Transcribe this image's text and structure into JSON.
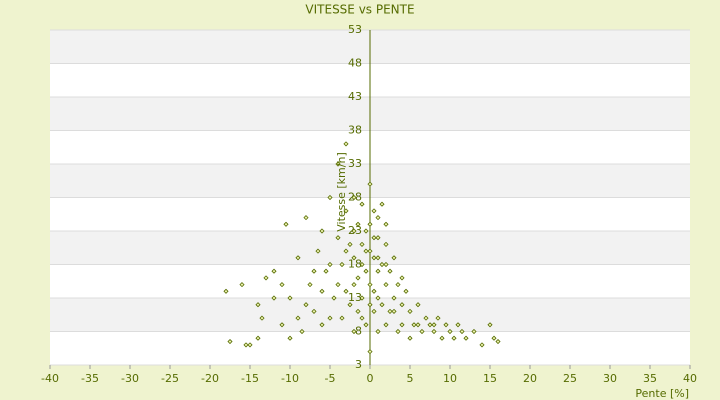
{
  "chart_data": {
    "type": "scatter",
    "title": "VITESSE vs PENTE",
    "x_label": "Pente [%]",
    "y_label": "Vitesse [km/h]",
    "xlim": [
      -40,
      40
    ],
    "xticks": [
      -40,
      -35,
      -30,
      -25,
      -20,
      -15,
      -10,
      -5,
      0,
      5,
      10,
      15,
      20,
      25,
      30,
      35,
      40
    ],
    "ylim": [
      3,
      53
    ],
    "yticks": [
      3,
      8,
      13,
      18,
      23,
      28,
      33,
      38,
      43,
      48,
      53
    ],
    "grid": true,
    "color": "#556b00",
    "series": [
      {
        "name": "Vitesse",
        "color": "#556b00",
        "x": [
          -18,
          -17.5,
          -16,
          -15,
          -14,
          -13.5,
          -12,
          -11,
          -10.5,
          -10,
          -9,
          -8.5,
          -8,
          -7.5,
          -7,
          -6.5,
          -6,
          -5.5,
          -5,
          -4.5,
          -4,
          -4,
          -3.5,
          -3.5,
          -3,
          -3,
          -3,
          -2.5,
          -2.5,
          -2,
          -2,
          -2,
          -1.5,
          -1.5,
          -1.5,
          -1,
          -1,
          -1,
          -1,
          -0.5,
          -0.5,
          -0.5,
          0,
          0,
          0,
          0,
          0,
          0.5,
          0.5,
          0.5,
          0.5,
          1,
          1,
          1,
          1,
          1.5,
          1.5,
          1.5,
          2,
          2,
          2,
          2.5,
          2.5,
          3,
          3,
          3.5,
          3.5,
          4,
          4,
          4.5,
          5,
          5,
          5.5,
          6,
          6.5,
          7,
          7.5,
          8,
          8.5,
          9,
          9.5,
          10,
          10.5,
          11,
          11.5,
          12,
          13,
          14,
          15,
          15.5,
          16,
          -12,
          -10,
          -8,
          -6,
          -5,
          -4,
          -3,
          -7,
          -9,
          -11,
          -14,
          -15.5,
          -13,
          -6,
          -5,
          -2,
          1,
          2,
          3,
          4,
          6,
          8,
          -1,
          0,
          0.5,
          -0.5,
          1,
          -2,
          2
        ],
        "values": [
          14,
          6.5,
          15,
          6,
          12,
          10,
          17,
          9,
          24,
          13,
          19,
          8,
          25,
          15,
          11,
          20,
          9,
          17,
          28,
          13,
          33,
          22,
          18,
          10,
          36,
          26,
          14,
          21,
          12,
          28,
          19,
          8,
          24,
          16,
          11,
          27,
          21,
          18,
          13,
          23,
          17,
          9,
          30,
          24,
          20,
          15,
          5,
          26,
          19,
          14,
          11,
          22,
          17,
          13,
          8,
          27,
          18,
          12,
          21,
          15,
          9,
          17,
          11,
          19,
          13,
          15,
          8,
          12,
          9,
          14,
          11,
          7,
          9,
          12,
          8,
          10,
          9,
          8,
          10,
          7,
          9,
          8,
          7,
          9,
          8,
          7,
          8,
          6,
          9,
          7,
          6.5,
          13,
          7,
          12,
          23,
          18,
          15,
          20,
          17,
          10,
          15,
          7,
          6,
          16,
          14,
          10,
          23,
          25,
          24,
          11,
          16,
          9,
          9,
          10,
          12,
          22,
          20,
          19,
          15,
          18
        ]
      }
    ]
  }
}
